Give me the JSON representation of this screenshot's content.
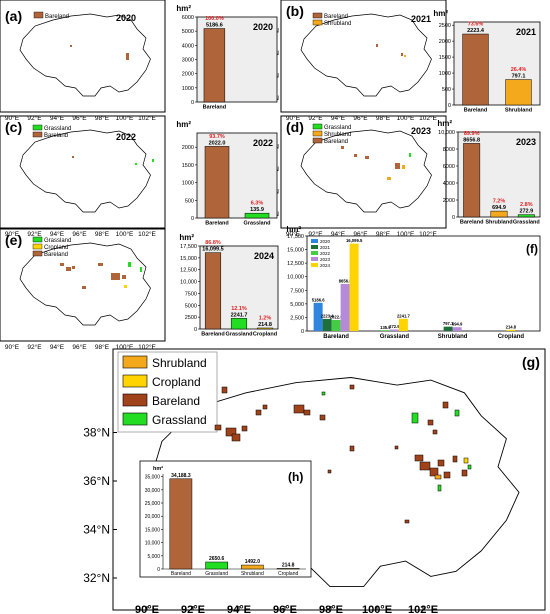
{
  "colors": {
    "bareland": "#b0643a",
    "grassland": "#22dd22",
    "shrubland": "#f4a81c",
    "cropland": "#ffd400",
    "pct": "#e02020",
    "panel_bg": "#eeeeee",
    "series_2020": "#2e86de",
    "series_2021": "#1f6f3a",
    "series_2022": "#44cc44",
    "series_2023": "#b58ad8",
    "series_2024": "#ffd400"
  },
  "map_ticks": {
    "lat": [
      "32°N",
      "34°N",
      "36°N",
      "38°N"
    ],
    "lon": [
      "90°E",
      "92°E",
      "94°E",
      "96°E",
      "98°E",
      "100°E",
      "102°E"
    ]
  },
  "unit": "hm²",
  "chart_data": [
    {
      "id": "a",
      "panel_label": "(a)",
      "type": "bar",
      "year_label": "2020",
      "legend": [
        "Bareland"
      ],
      "categories": [
        "Bareland"
      ],
      "values": [
        5186.6
      ],
      "value_labels": [
        "5186.6"
      ],
      "percents": [
        "100.0%"
      ],
      "ylabel": "hm²",
      "ylim": [
        0,
        6000
      ],
      "yticks": [
        "0",
        "1000",
        "2000",
        "3000",
        "4000",
        "5000",
        "6000"
      ]
    },
    {
      "id": "b",
      "panel_label": "(b)",
      "type": "bar",
      "year_label": "2021",
      "legend": [
        "Bareland",
        "Shrubland"
      ],
      "categories": [
        "Bareland",
        "Shrubland"
      ],
      "values": [
        2223.4,
        797.1
      ],
      "value_labels": [
        "2223.4",
        "797.1"
      ],
      "percents": [
        "73.6%",
        "26.4%"
      ],
      "ylabel": "hm²",
      "ylim": [
        0,
        2600
      ],
      "yticks": [
        "0",
        "500",
        "1000",
        "1500",
        "2000",
        "2500"
      ]
    },
    {
      "id": "c",
      "panel_label": "(c)",
      "type": "bar",
      "year_label": "2022",
      "legend": [
        "Grassland",
        "Bareland"
      ],
      "categories": [
        "Bareland",
        "Grassland"
      ],
      "values": [
        2022.0,
        135.9
      ],
      "value_labels": [
        "2022.0",
        "135.9"
      ],
      "percents": [
        "93.7%",
        "6.3%"
      ],
      "ylabel": "hm²",
      "ylim": [
        0,
        2400
      ],
      "yticks": [
        "0",
        "500",
        "1000",
        "1500",
        "2000"
      ]
    },
    {
      "id": "d",
      "panel_label": "(d)",
      "type": "bar",
      "year_label": "2023",
      "legend": [
        "Grassland",
        "Shrubland",
        "Bareland"
      ],
      "categories": [
        "Bareland",
        "Shrubland",
        "Grassland"
      ],
      "values": [
        8656.8,
        694.9,
        272.9
      ],
      "value_labels": [
        "8656.8",
        "694.9",
        "272.9"
      ],
      "percents": [
        "89.9%",
        "7.2%",
        "2.8%"
      ],
      "ylabel": "hm²",
      "ylim": [
        0,
        10000
      ],
      "yticks": [
        "0",
        "2000",
        "4000",
        "6000",
        "8000",
        "10,000"
      ]
    },
    {
      "id": "e",
      "panel_label": "(e)",
      "type": "bar",
      "year_label": "2024",
      "legend": [
        "Grassland",
        "Cropland",
        "Bareland"
      ],
      "categories": [
        "Bareland",
        "Grassland",
        "Cropland"
      ],
      "values": [
        16099.5,
        2241.7,
        214.8
      ],
      "value_labels": [
        "16,099.5",
        "2241.7",
        "214.8"
      ],
      "percents": [
        "86.8%",
        "12.1%",
        "1.2%"
      ],
      "ylabel": "hm²",
      "ylim": [
        0,
        17500
      ],
      "yticks": [
        "0",
        "2500",
        "5000",
        "7500",
        "10,000",
        "12,500",
        "15,000",
        "17,500"
      ]
    },
    {
      "id": "f",
      "panel_label": "(f)",
      "type": "bar",
      "categories": [
        "Bareland",
        "Grassland",
        "Shrubland",
        "Cropland"
      ],
      "series": [
        {
          "name": "2020",
          "values": [
            5186.6,
            null,
            null,
            null
          ],
          "labels": [
            "5186.6",
            "",
            "",
            ""
          ]
        },
        {
          "name": "2021",
          "values": [
            2223.4,
            null,
            797.1,
            null
          ],
          "labels": [
            "2223.4",
            "",
            "797.1",
            ""
          ]
        },
        {
          "name": "2022",
          "values": [
            2022.0,
            135.9,
            null,
            null
          ],
          "labels": [
            "2022.0",
            "135.9",
            "",
            ""
          ]
        },
        {
          "name": "2023",
          "values": [
            8656.8,
            272.9,
            694.9,
            null
          ],
          "labels": [
            "8656.8",
            "272.9",
            "694.9",
            ""
          ]
        },
        {
          "name": "2024",
          "values": [
            16099.5,
            2241.7,
            null,
            214.8
          ],
          "labels": [
            "16,099.5",
            "2241.7",
            "",
            "214.8"
          ]
        }
      ],
      "ylabel": "hm²",
      "ylim": [
        0,
        17500
      ],
      "yticks": [
        "0",
        "2,500",
        "5,000",
        "7,500",
        "10,000",
        "12,500",
        "15,000",
        "17,500"
      ]
    },
    {
      "id": "h",
      "panel_label": "(h)",
      "type": "bar",
      "categories": [
        "Bareland",
        "Grassland",
        "Shrubland",
        "Cropland"
      ],
      "values": [
        34188.3,
        2650.6,
        1492.0,
        214.8
      ],
      "value_labels": [
        "34,188.3",
        "2650.6",
        "1492.0",
        "214.8"
      ],
      "ylabel": "hm²",
      "ylim": [
        0,
        36000
      ],
      "yticks": [
        "0",
        "5,000",
        "10,000",
        "15,000",
        "20,000",
        "25,000",
        "30,000",
        "35,000"
      ]
    }
  ],
  "map_g": {
    "panel_label": "(g)",
    "legend": [
      "Shrubland",
      "Cropland",
      "Bareland",
      "Grassland"
    ]
  }
}
